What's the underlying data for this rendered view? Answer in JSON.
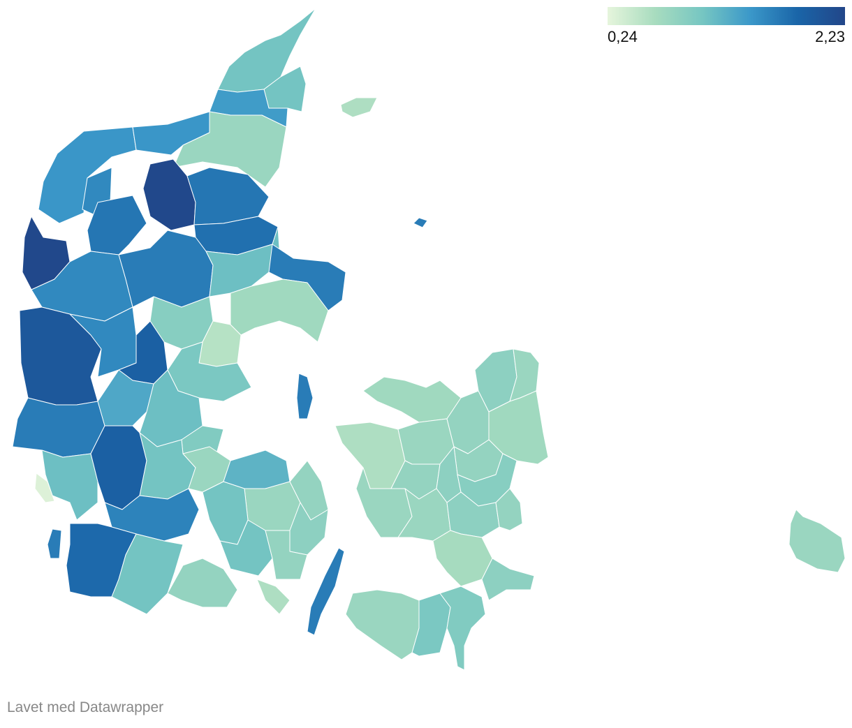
{
  "legend": {
    "min_label": "0,24",
    "max_label": "2,23",
    "min_value": 0.24,
    "max_value": 2.23,
    "colors": [
      "#e6f5dc",
      "#a8dcbf",
      "#76c6c2",
      "#3b98c9",
      "#1a65a8",
      "#224689"
    ]
  },
  "credit": "Lavet med Datawrapper",
  "map": {
    "regions": [
      {
        "id": "vendsyssel-north",
        "value": 1.05
      },
      {
        "id": "frederikshavn",
        "value": 1.05
      },
      {
        "id": "hjorring",
        "value": 1.4
      },
      {
        "id": "thisted",
        "value": 1.45
      },
      {
        "id": "jammerbugt",
        "value": 1.45
      },
      {
        "id": "aalborg-north",
        "value": 0.75
      },
      {
        "id": "morso",
        "value": 1.55
      },
      {
        "id": "vesthimmerland",
        "value": 2.2
      },
      {
        "id": "rebild",
        "value": 1.7
      },
      {
        "id": "mariagerfjord",
        "value": 1.75
      },
      {
        "id": "struer",
        "value": 2.2
      },
      {
        "id": "skive",
        "value": 1.7
      },
      {
        "id": "viborg",
        "value": 1.65
      },
      {
        "id": "randers",
        "value": 1.1
      },
      {
        "id": "norddjurs",
        "value": 1.65
      },
      {
        "id": "holstebro",
        "value": 1.55
      },
      {
        "id": "ringkobing",
        "value": 2.0
      },
      {
        "id": "herning",
        "value": 1.55
      },
      {
        "id": "silkeborg",
        "value": 0.9
      },
      {
        "id": "aarhus",
        "value": 0.55
      },
      {
        "id": "syddjurs",
        "value": 0.7
      },
      {
        "id": "ikast",
        "value": 1.9
      },
      {
        "id": "horsens",
        "value": 1.0
      },
      {
        "id": "varde",
        "value": 1.65
      },
      {
        "id": "billund",
        "value": 1.3
      },
      {
        "id": "vejle",
        "value": 1.1
      },
      {
        "id": "fredericia",
        "value": 0.95
      },
      {
        "id": "esbjerg",
        "value": 1.1
      },
      {
        "id": "vejen",
        "value": 1.9
      },
      {
        "id": "kolding",
        "value": 1.05
      },
      {
        "id": "haderslev",
        "value": 1.6
      },
      {
        "id": "tonder",
        "value": 1.8
      },
      {
        "id": "aabenraa",
        "value": 1.05
      },
      {
        "id": "sonderborg",
        "value": 0.8
      },
      {
        "id": "fanø",
        "value": 0.3
      },
      {
        "id": "romo",
        "value": 1.65
      },
      {
        "id": "samso",
        "value": 1.65
      },
      {
        "id": "anholt",
        "value": 1.65
      },
      {
        "id": "laeso",
        "value": 0.6
      },
      {
        "id": "middelfart",
        "value": 0.75
      },
      {
        "id": "nordfyn",
        "value": 1.2
      },
      {
        "id": "odense",
        "value": 0.75
      },
      {
        "id": "kerteminde",
        "value": 0.8
      },
      {
        "id": "assens",
        "value": 1.05
      },
      {
        "id": "faaborg",
        "value": 1.05
      },
      {
        "id": "nyborg",
        "value": 0.85
      },
      {
        "id": "svendborg",
        "value": 0.8
      },
      {
        "id": "aero",
        "value": 0.6
      },
      {
        "id": "langeland",
        "value": 1.65
      },
      {
        "id": "odsherred",
        "value": 0.7
      },
      {
        "id": "kalundborg",
        "value": 0.6
      },
      {
        "id": "holbaek",
        "value": 0.75
      },
      {
        "id": "frederikssund",
        "value": 0.8
      },
      {
        "id": "hillerod",
        "value": 0.85
      },
      {
        "id": "helsingor",
        "value": 0.75
      },
      {
        "id": "copenhagen",
        "value": 0.7
      },
      {
        "id": "roskilde",
        "value": 0.8
      },
      {
        "id": "slagelse",
        "value": 0.75
      },
      {
        "id": "sorø",
        "value": 0.8
      },
      {
        "id": "ringsted",
        "value": 0.85
      },
      {
        "id": "koge",
        "value": 0.9
      },
      {
        "id": "naestved",
        "value": 0.75
      },
      {
        "id": "faxe",
        "value": 0.85
      },
      {
        "id": "stevns",
        "value": 0.8
      },
      {
        "id": "vordingborg",
        "value": 0.65
      },
      {
        "id": "mon",
        "value": 0.85
      },
      {
        "id": "lolland",
        "value": 0.75
      },
      {
        "id": "guldborgsund-west",
        "value": 1.0
      },
      {
        "id": "guldborgsund-east",
        "value": 0.95
      },
      {
        "id": "bornholm",
        "value": 0.75
      }
    ]
  }
}
